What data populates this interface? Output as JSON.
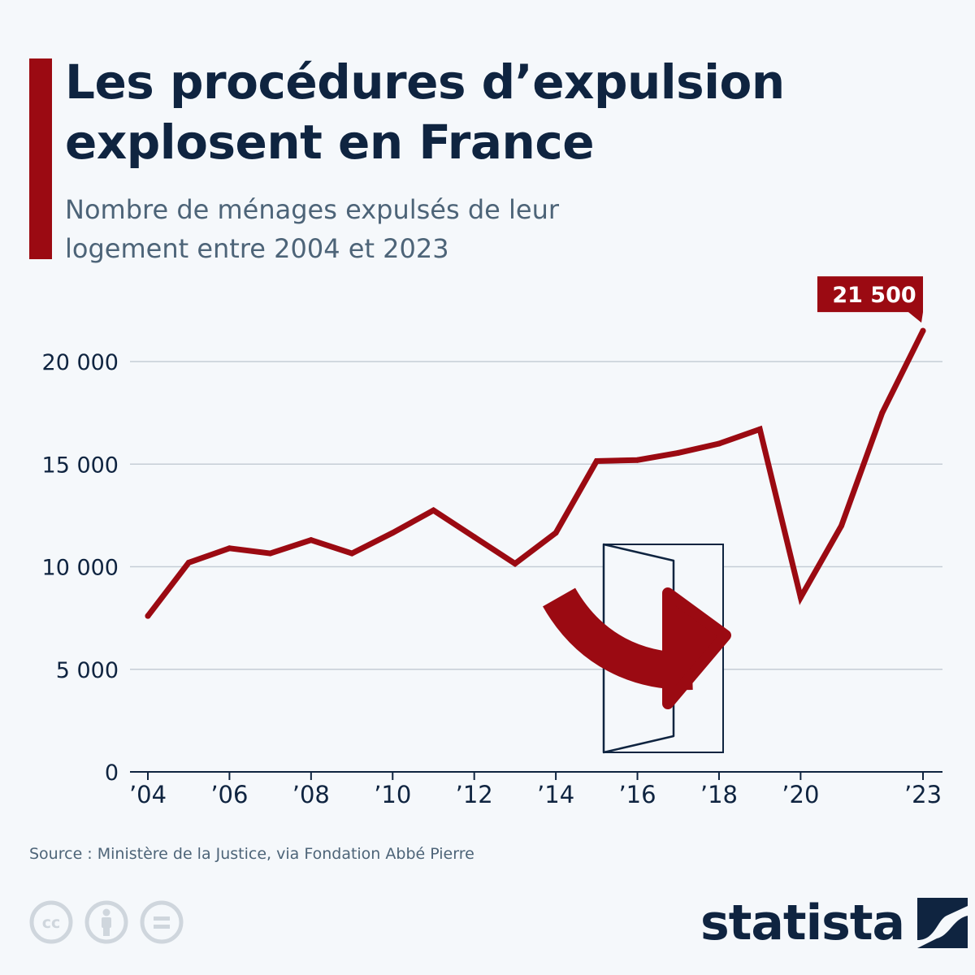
{
  "colors": {
    "accent": "#9b0a12",
    "text": "#0f2440",
    "muted": "#4d6478",
    "grid": "#c5cdd6",
    "icon": "#cfd6dd"
  },
  "header": {
    "title_line1": "Les procédures d’expulsion",
    "title_line2": "explosent en France",
    "subtitle_line1": "Nombre de ménages expulsés de leur",
    "subtitle_line2": "logement entre 2004 et 2023"
  },
  "chart_data": {
    "type": "line",
    "title": "Les procédures d’expulsion explosent en France",
    "subtitle": "Nombre de ménages expulsés de leur logement entre 2004 et 2023",
    "x": [
      2004,
      2005,
      2006,
      2007,
      2008,
      2009,
      2010,
      2011,
      2012,
      2013,
      2014,
      2015,
      2016,
      2017,
      2018,
      2019,
      2020,
      2021,
      2022,
      2023
    ],
    "series": [
      {
        "values": [
          7600,
          10200,
          10900,
          10650,
          11300,
          10650,
          11650,
          12750,
          11450,
          10150,
          11650,
          15150,
          15200,
          15550,
          16000,
          16700,
          8500,
          12000,
          17500,
          21500
        ]
      }
    ],
    "x_tick_labels": [
      "’04",
      "’06",
      "’08",
      "’10",
      "’12",
      "’14",
      "’16",
      "’18",
      "’20",
      "’23"
    ],
    "x_tick_years": [
      2004,
      2006,
      2008,
      2010,
      2012,
      2014,
      2016,
      2018,
      2020,
      2023
    ],
    "y_ticks": [
      0,
      5000,
      10000,
      15000,
      20000
    ],
    "y_tick_labels": [
      "0",
      "5 000",
      "10 000",
      "15 000",
      "20 000"
    ],
    "ylim": [
      0,
      20000
    ],
    "grid": true,
    "annotations": [
      {
        "x": 2023,
        "value": 21500,
        "label": "21 500"
      }
    ]
  },
  "footer": {
    "source": "Source : Ministère de la Justice, via Fondation Abbé Pierre",
    "brand": "statista",
    "license_icons": [
      "creative-commons-icon",
      "attribution-icon",
      "no-derivatives-icon"
    ]
  }
}
